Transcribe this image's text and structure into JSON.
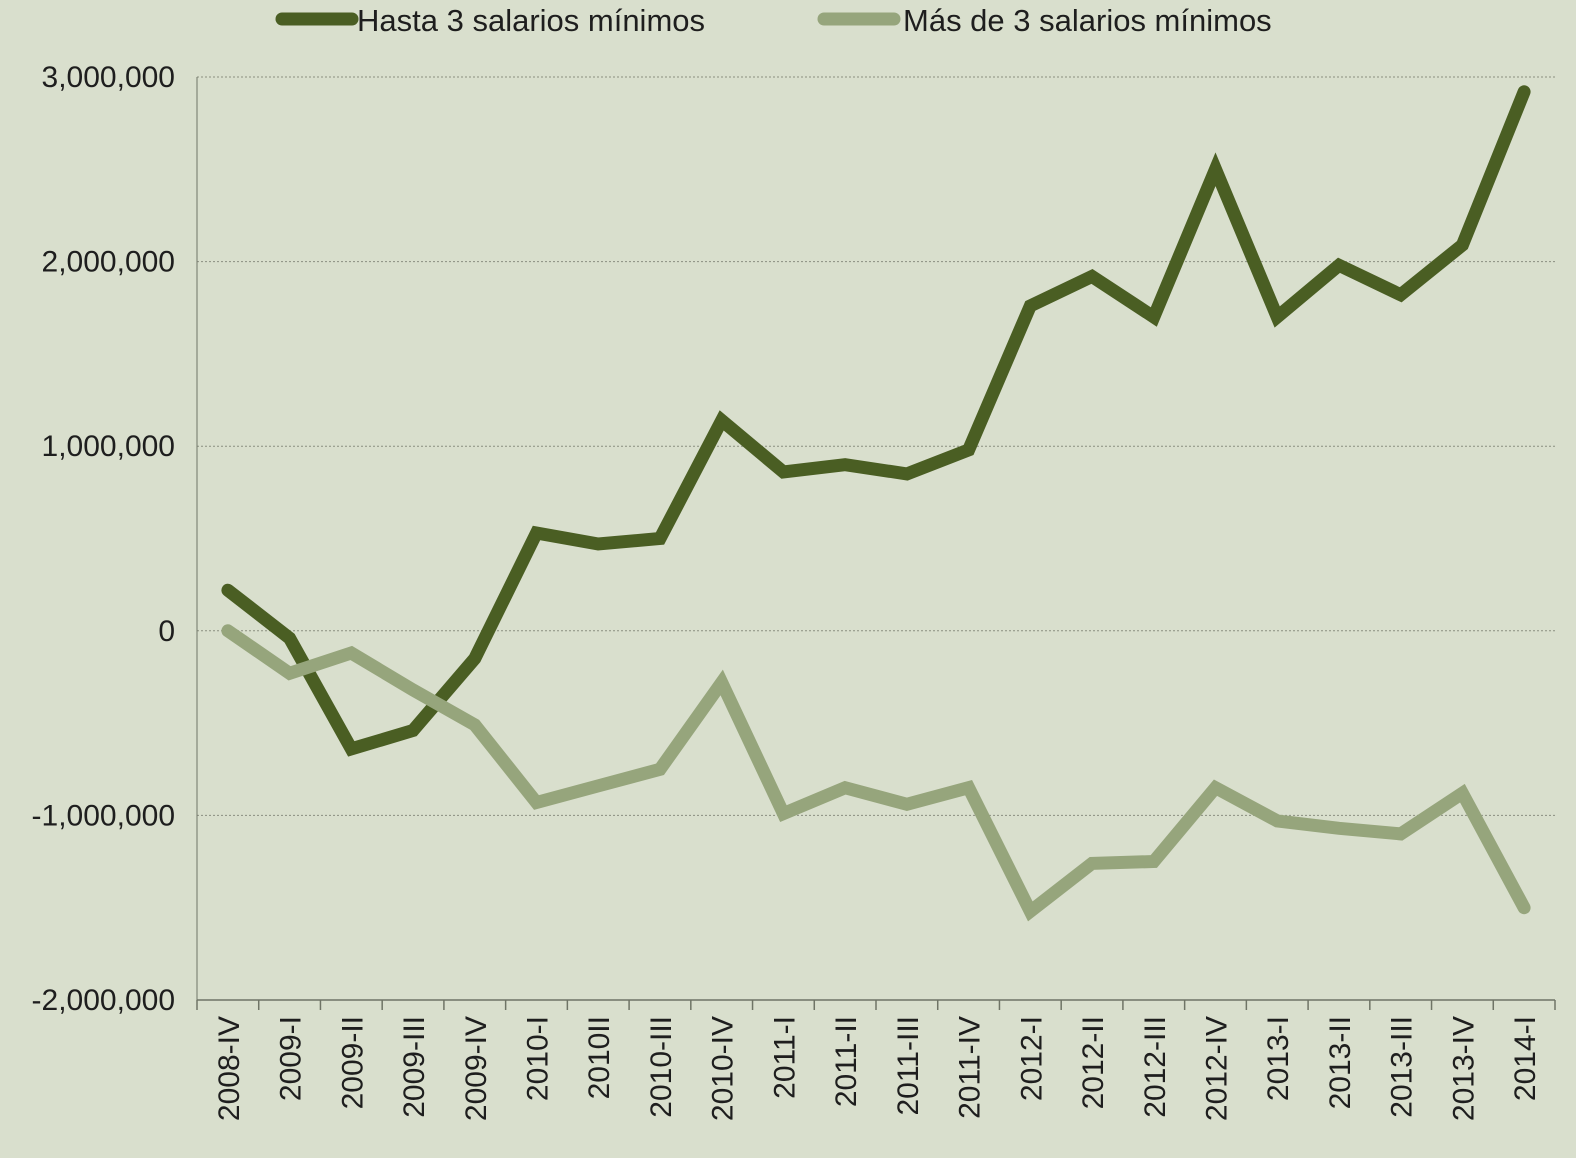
{
  "chart_data": {
    "type": "line",
    "categories": [
      "2008-IV",
      "2009-I",
      "2009-II",
      "2009-III",
      "2009-IV",
      "2010-I",
      "2010II",
      "2010-III",
      "2010-IV",
      "2011-I",
      "2011-II",
      "2011-III",
      "2011-IV",
      "2012-I",
      "2012-II",
      "2012-III",
      "2012-IV",
      "2013-I",
      "2013-II",
      "2013-III",
      "2013-IV",
      "2014-I"
    ],
    "series": [
      {
        "name": "Hasta 3 salarios mínimos",
        "color": "#4a5e23",
        "values": [
          220000,
          -40000,
          -640000,
          -540000,
          -150000,
          530000,
          470000,
          500000,
          1140000,
          860000,
          900000,
          850000,
          980000,
          1760000,
          1920000,
          1700000,
          2500000,
          1700000,
          1980000,
          1820000,
          2090000,
          2920000
        ]
      },
      {
        "name": "Más de 3 salarios mínimos",
        "color": "#96a57c",
        "values": [
          0,
          -230000,
          -120000,
          -320000,
          -510000,
          -930000,
          -840000,
          -750000,
          -280000,
          -990000,
          -850000,
          -940000,
          -850000,
          -1520000,
          -1260000,
          -1250000,
          -850000,
          -1030000,
          -1070000,
          -1100000,
          -880000,
          -1500000
        ]
      }
    ],
    "yticks": [
      3000000,
      2000000,
      1000000,
      0,
      -1000000,
      -2000000
    ],
    "ytick_labels": [
      "3,000,000",
      "2,000,000",
      "1,000,000",
      "0",
      "-1,000,000",
      "-2,000,000"
    ],
    "ylim": [
      -2000000,
      3000000
    ],
    "xlabel": "",
    "ylabel": "",
    "grid": true,
    "legend_position": "top"
  }
}
